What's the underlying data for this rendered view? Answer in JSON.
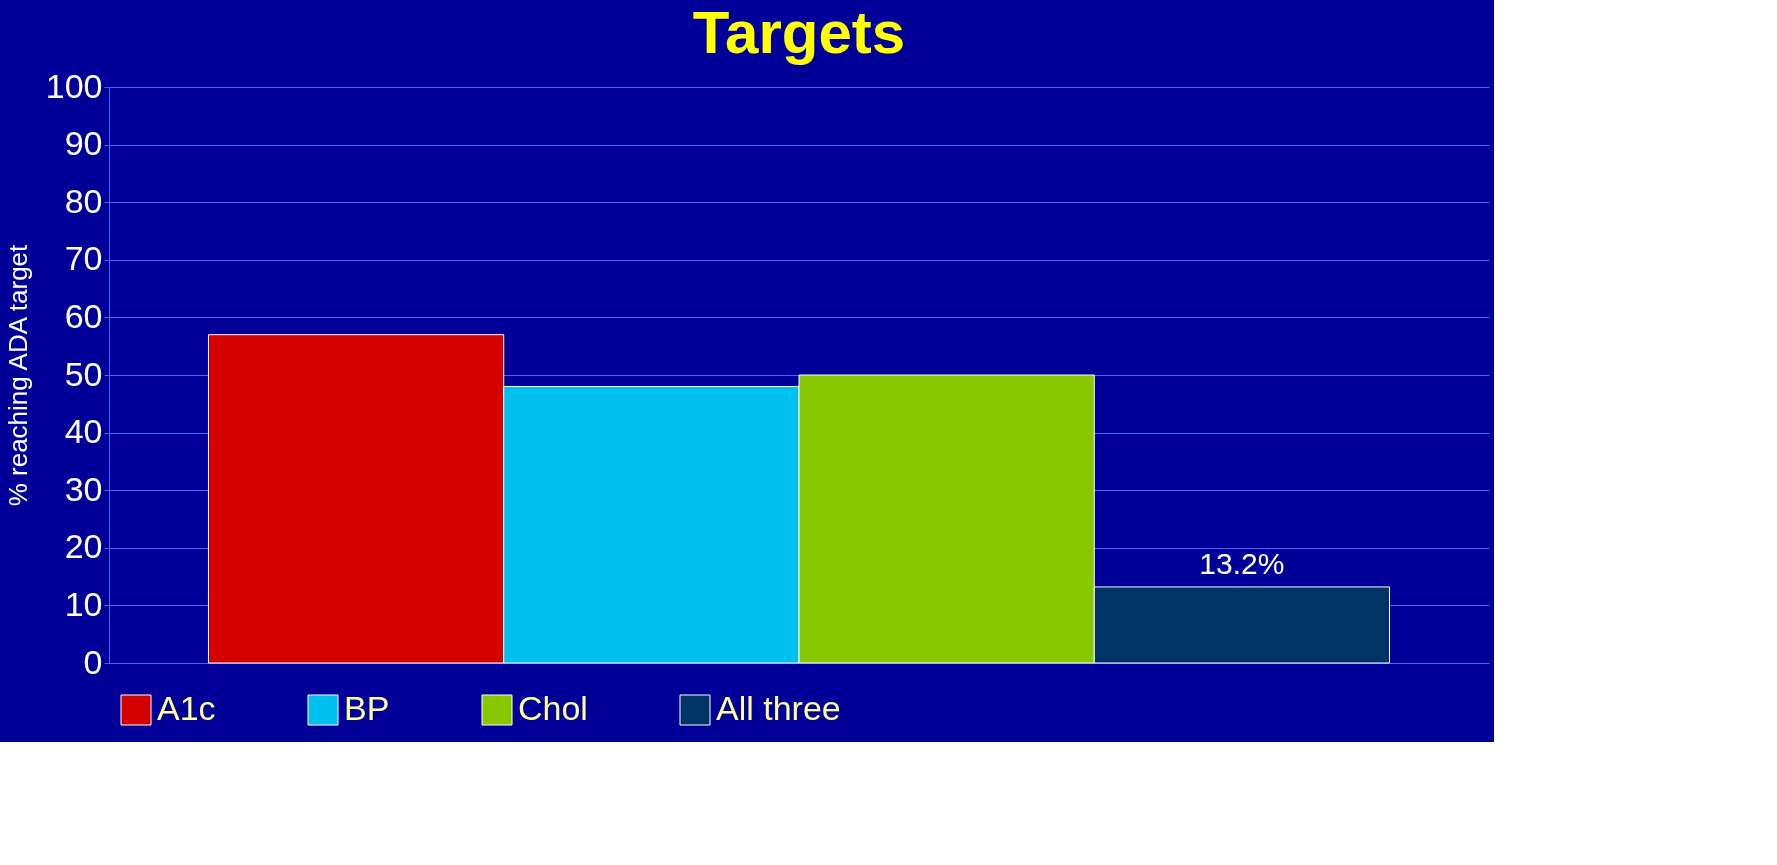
{
  "chart_data": {
    "type": "bar",
    "title": "Targets",
    "ylabel": "% reaching ADA target",
    "categories": [
      null
    ],
    "series": [
      {
        "name": "A1c",
        "color": "#d40000",
        "values": [
          57
        ]
      },
      {
        "name": "BP",
        "color": "#00c0f0",
        "values": [
          48
        ]
      },
      {
        "name": "Chol",
        "color": "#88c800",
        "values": [
          50
        ]
      },
      {
        "name": "All three",
        "color": "#003366",
        "values": [
          13.2
        ],
        "value_labels": [
          "13.2%"
        ]
      }
    ],
    "ylim": [
      0,
      100
    ],
    "yticks": [
      0,
      10,
      20,
      30,
      40,
      50,
      60,
      70,
      80,
      90,
      100
    ],
    "grid": "y",
    "legend": "bottom"
  }
}
